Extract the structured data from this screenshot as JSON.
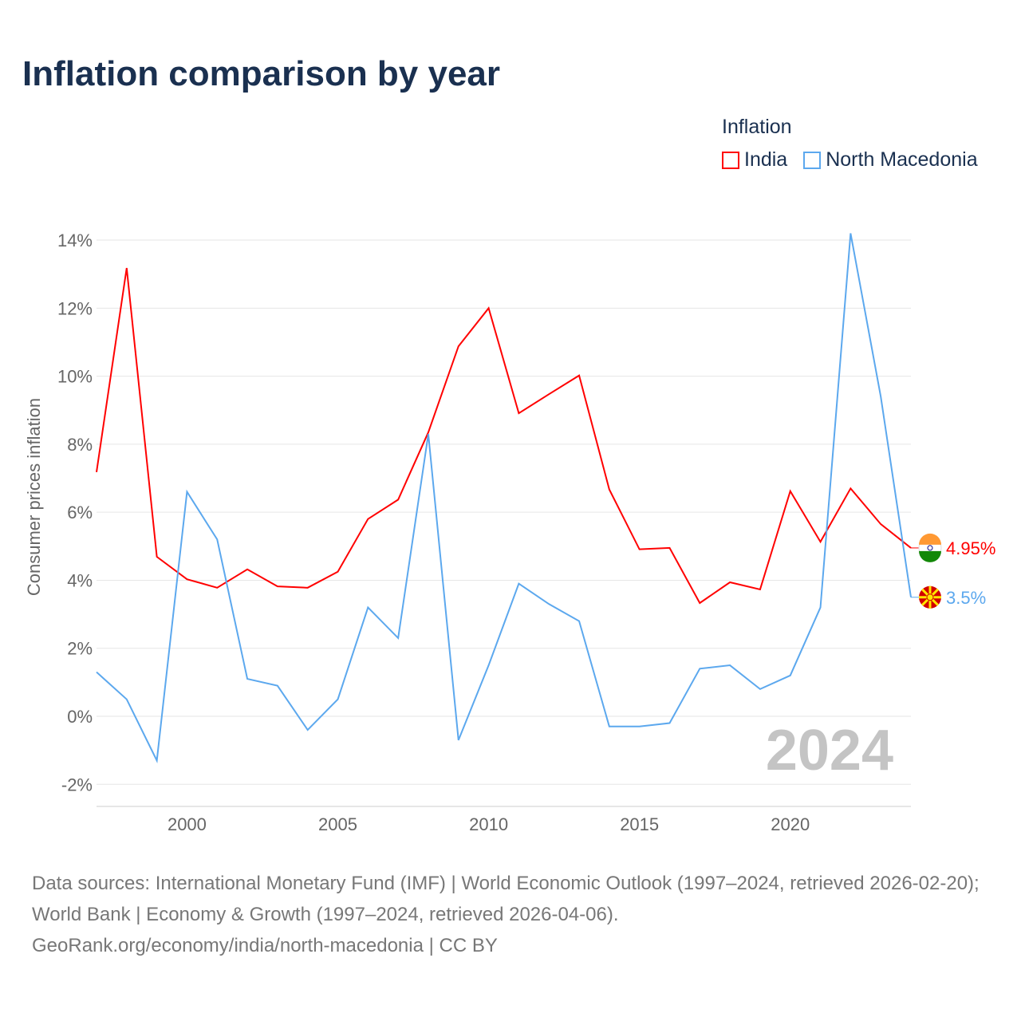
{
  "title": "Inflation comparison by year",
  "legend": {
    "title": "Inflation",
    "items": [
      {
        "label": "India",
        "color": "#ff0000"
      },
      {
        "label": "North Macedonia",
        "color": "#5ca8ee"
      }
    ]
  },
  "watermark_year": "2024",
  "footer": {
    "line1": "Data sources: International Monetary Fund (IMF) | World Economic Outlook (1997–2024, retrieved 2026-02-20); World Bank | Economy & Growth (1997–2024, retrieved 2026-04-06).",
    "line2": "GeoRank.org/economy/india/north-macedonia | CC BY"
  },
  "chart_data": {
    "type": "line",
    "title": "Inflation comparison by year",
    "xlabel": "",
    "ylabel": "Consumer prices inflation",
    "xlim": [
      1997,
      2024
    ],
    "ylim": [
      -2.5,
      14.5
    ],
    "x_ticks": [
      2000,
      2005,
      2010,
      2015,
      2020
    ],
    "y_ticks": [
      -2,
      0,
      2,
      4,
      6,
      8,
      10,
      12,
      14
    ],
    "y_tick_labels": [
      "-2%",
      "0%",
      "2%",
      "4%",
      "6%",
      "8%",
      "10%",
      "12%",
      "14%"
    ],
    "grid": true,
    "x": [
      1997,
      1998,
      1999,
      2000,
      2001,
      2002,
      2003,
      2004,
      2005,
      2006,
      2007,
      2008,
      2009,
      2010,
      2011,
      2012,
      2013,
      2014,
      2015,
      2016,
      2017,
      2018,
      2019,
      2020,
      2021,
      2022,
      2023,
      2024
    ],
    "series": [
      {
        "name": "India",
        "color": "#ff0000",
        "end_label": "4.95%",
        "values": [
          7.18,
          13.18,
          4.69,
          4.03,
          3.78,
          4.32,
          3.82,
          3.78,
          4.25,
          5.8,
          6.37,
          8.35,
          10.88,
          12.0,
          8.91,
          9.47,
          10.02,
          6.67,
          4.91,
          4.95,
          3.33,
          3.94,
          3.73,
          6.62,
          5.13,
          6.7,
          5.65,
          4.95
        ]
      },
      {
        "name": "North Macedonia",
        "color": "#5ca8ee",
        "end_label": "3.5%",
        "values": [
          1.3,
          0.5,
          -1.3,
          6.6,
          5.2,
          1.1,
          0.9,
          -0.4,
          0.5,
          3.2,
          2.3,
          8.3,
          -0.7,
          1.5,
          3.9,
          3.3,
          2.8,
          -0.3,
          -0.3,
          -0.2,
          1.4,
          1.5,
          0.8,
          1.2,
          3.2,
          14.2,
          9.4,
          3.5
        ]
      }
    ]
  }
}
